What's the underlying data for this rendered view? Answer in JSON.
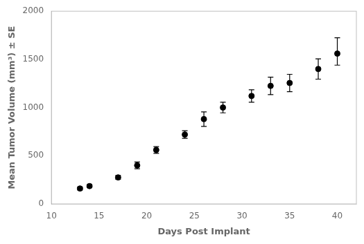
{
  "chart_data": {
    "type": "scatter",
    "x": [
      13,
      14,
      17,
      19,
      21,
      24,
      26,
      28,
      31,
      33,
      35,
      38,
      40
    ],
    "values": [
      160,
      185,
      275,
      400,
      560,
      720,
      880,
      1000,
      1120,
      1225,
      1255,
      1400,
      1560
    ],
    "yerr_low": [
      15,
      15,
      20,
      35,
      35,
      40,
      75,
      55,
      65,
      90,
      90,
      105,
      120
    ],
    "yerr_high": [
      15,
      15,
      20,
      35,
      35,
      40,
      75,
      55,
      65,
      90,
      90,
      105,
      165
    ],
    "xlabel": "Days Post Implant",
    "ylabel": "Mean Tumor Volume (mm³) ± SE",
    "xlim": [
      10,
      42
    ],
    "ylim": [
      0,
      2000
    ],
    "xticks": [
      10,
      15,
      20,
      25,
      30,
      35,
      40
    ],
    "yticks": [
      0,
      500,
      1000,
      1500,
      2000
    ],
    "color": "#000000",
    "marker": "circle",
    "grid": false
  }
}
